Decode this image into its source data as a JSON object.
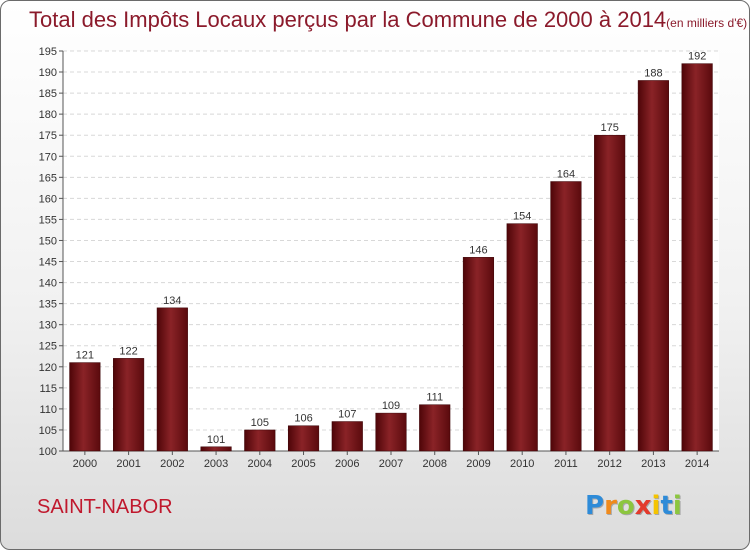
{
  "chart_data": {
    "type": "bar",
    "title": "Total des Impôts Locaux perçus par la Commune de 2000 à 2014",
    "unit": "(en milliers d'€)",
    "categories": [
      "2000",
      "2001",
      "2002",
      "2003",
      "2004",
      "2005",
      "2006",
      "2007",
      "2008",
      "2009",
      "2010",
      "2011",
      "2012",
      "2013",
      "2014"
    ],
    "values": [
      121,
      122,
      134,
      101,
      105,
      106,
      107,
      109,
      111,
      146,
      154,
      164,
      175,
      188,
      192
    ],
    "ylim": [
      100,
      195
    ],
    "ytick_step": 5,
    "xlabel": "",
    "ylabel": "",
    "grid": true,
    "bar_color": "#7a1418"
  },
  "commune": "SAINT-NABOR",
  "logo": {
    "letters": [
      "P",
      "r",
      "o",
      "x",
      "i",
      "t",
      "i"
    ],
    "colors": [
      "#2e8bd8",
      "#f08a1c",
      "#8cc63f",
      "#e33a2c",
      "#f5c400",
      "#2e8bd8",
      "#8cc63f"
    ]
  }
}
